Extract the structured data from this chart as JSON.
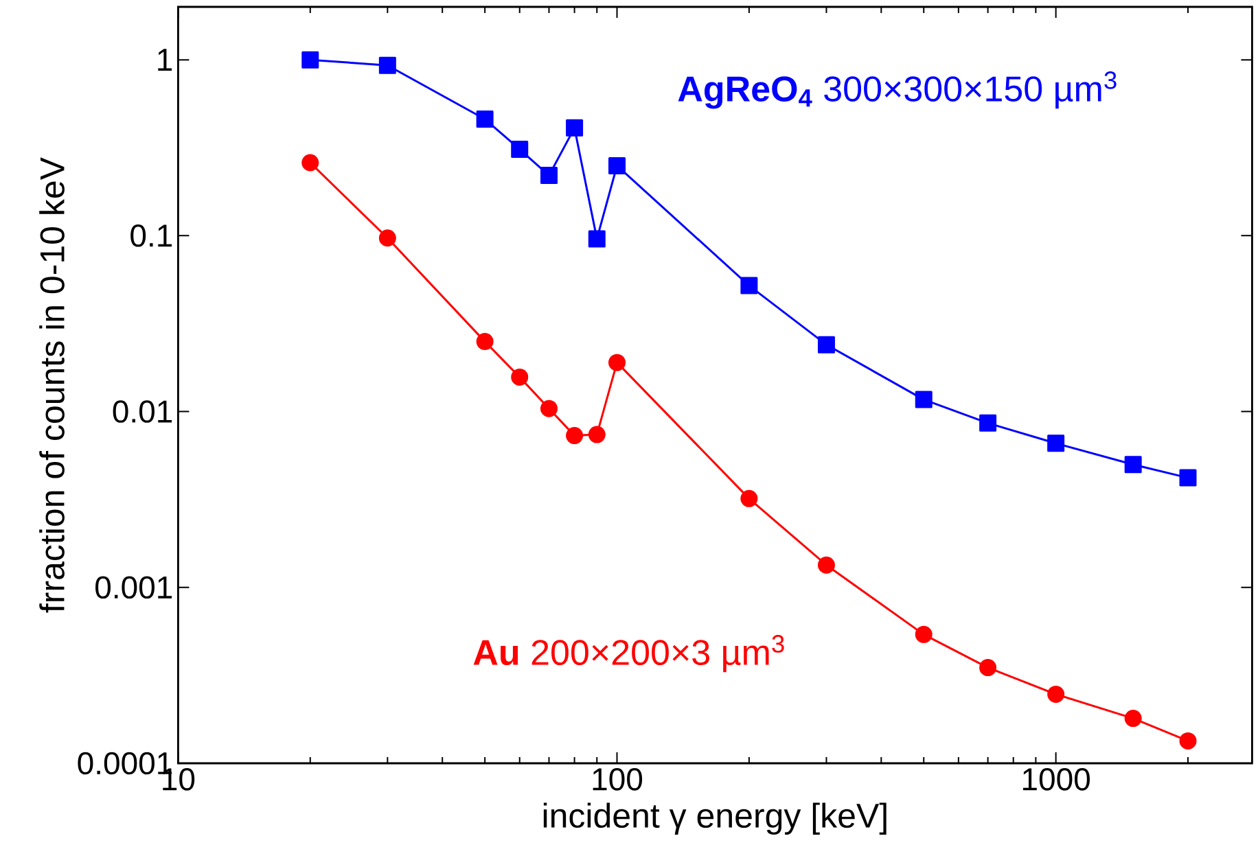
{
  "chart_data": {
    "type": "line",
    "xlabel": "incident γ  energy [keV]",
    "ylabel": "frraction of counts in 0-10 keV",
    "log": "xy",
    "grid": false,
    "legend": false,
    "xlim": [
      10,
      2800
    ],
    "ylim": [
      0.0001,
      2
    ],
    "xticks": [
      10,
      100,
      1000
    ],
    "yticks": [
      0.0001,
      0.001,
      0.01,
      0.1,
      1
    ],
    "x": [
      20,
      30,
      50,
      60,
      70,
      80,
      90,
      100,
      200,
      300,
      500,
      700,
      1000,
      1500,
      2000
    ],
    "series": [
      {
        "name": "**AgReO$_{4}$**  300×300×150 µm$^{3}$",
        "color": "#0000ff",
        "marker": "square",
        "values": [
          1,
          0.93,
          0.46,
          0.31,
          0.22,
          0.41,
          0.096,
          0.25,
          0.052,
          0.024,
          0.0117,
          0.0086,
          0.0066,
          0.005,
          0.0042
        ]
      },
      {
        "name": "**Au** 200×200×3 µm$^{3}$",
        "color": "#ff0000",
        "marker": "circle",
        "values": [
          0.26,
          0.097,
          0.025,
          0.0157,
          0.0104,
          0.0073,
          0.0074,
          0.019,
          0.0032,
          0.00134,
          0.00054,
          0.00035,
          0.000247,
          0.00018,
          0.000134
        ]
      }
    ]
  }
}
